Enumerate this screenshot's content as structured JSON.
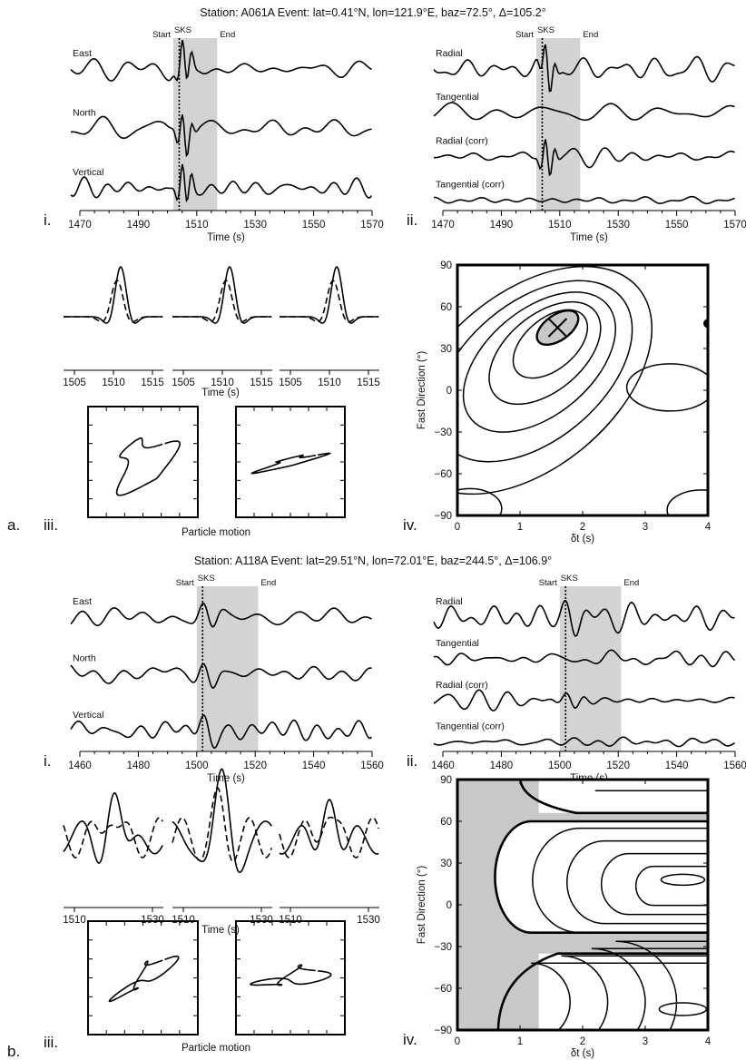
{
  "colors": {
    "trace": "#000000",
    "window": "#d3d3d3",
    "contour_fill": "#c8c8c8",
    "background": "#ffffff"
  },
  "panels": [
    {
      "panel_label": "a.",
      "title": "Station: A061A Event: lat=0.41°N, lon=121.9°E, baz=72.5°, Δ=105.2°",
      "window": {
        "start_label": "Start",
        "phase_label": "SKS",
        "end_label": "End",
        "start": 1502,
        "end": 1517,
        "phase": 1504
      },
      "traces_left": {
        "sub_label": "i.",
        "xlabel": "Time (s)",
        "ticks": [
          "1470",
          "1490",
          "1510",
          "1530",
          "1550",
          "1570"
        ],
        "xlim": [
          1460,
          1570
        ],
        "channels": [
          "East",
          "North",
          "Vertical"
        ]
      },
      "traces_right": {
        "sub_label": "ii.",
        "xlabel": "Time (s)",
        "ticks": [
          "1470",
          "1490",
          "1510",
          "1530",
          "1550",
          "1570"
        ],
        "xlim": [
          1460,
          1570
        ],
        "channels": [
          "Radial",
          "Tangential",
          "Radial (corr)",
          "Tangential (corr)"
        ]
      },
      "waveforms": {
        "sub_label": "iii.",
        "xlabel": "Time (s)",
        "ticks": [
          "1505",
          "1510",
          "1515"
        ]
      },
      "particle_motion": {
        "label": "Particle motion"
      },
      "grid_search": {
        "sub_label": "iv.",
        "ylabel": "Fast Direction (°)",
        "xlabel": "δt (s)",
        "yticks": [
          "90",
          "60",
          "30",
          "0",
          "−30",
          "−60",
          "−90"
        ],
        "xticks": [
          "0",
          "1",
          "2",
          "3",
          "4"
        ],
        "best": {
          "dt": 1.6,
          "phi": 45
        }
      }
    },
    {
      "panel_label": "b.",
      "title": "Station: A118A Event: lat=29.51°N, lon=72.01°E, baz=244.5°, Δ=106.9°",
      "window": {
        "start_label": "Start",
        "phase_label": "SKS",
        "end_label": "End",
        "start": 1500,
        "end": 1521,
        "phase": 1502
      },
      "traces_left": {
        "sub_label": "i.",
        "xlabel": "Time (s)",
        "ticks": [
          "1460",
          "1480",
          "1500",
          "1520",
          "1540",
          "1560"
        ],
        "xlim": [
          1448,
          1560
        ],
        "channels": [
          "East",
          "North",
          "Vertical"
        ]
      },
      "traces_right": {
        "sub_label": "ii.",
        "xlabel": "Time (s)",
        "ticks": [
          "1460",
          "1480",
          "1500",
          "1520",
          "1540",
          "1560"
        ],
        "xlim": [
          1448,
          1560
        ],
        "channels": [
          "Radial",
          "Tangential",
          "Radial (corr)",
          "Tangential (corr)"
        ]
      },
      "waveforms": {
        "sub_label": "iii.",
        "xlabel": "Time (s)",
        "ticks": [
          "1510",
          "1530"
        ]
      },
      "particle_motion": {
        "label": "Particle motion"
      },
      "grid_search": {
        "sub_label": "iv.",
        "ylabel": "Fast Direction (°)",
        "xlabel": "δt (s)",
        "yticks": [
          "90",
          "60",
          "30",
          "0",
          "−30",
          "−60",
          "−90"
        ],
        "xticks": [
          "0",
          "1",
          "2",
          "3",
          "4"
        ]
      }
    }
  ],
  "chart_data": [
    {
      "type": "line",
      "panel": "a.i",
      "x_range": [
        1460,
        1570
      ],
      "series": [
        {
          "name": "East"
        },
        {
          "name": "North"
        },
        {
          "name": "Vertical"
        }
      ]
    },
    {
      "type": "line",
      "panel": "a.ii",
      "x_range": [
        1460,
        1570
      ],
      "series": [
        {
          "name": "Radial"
        },
        {
          "name": "Tangential"
        },
        {
          "name": "Radial (corr)"
        },
        {
          "name": "Tangential (corr)"
        }
      ]
    },
    {
      "type": "heatmap",
      "panel": "a.iv",
      "x_range": [
        0,
        4
      ],
      "y_range": [
        -90,
        90
      ],
      "best_dt": 1.6,
      "best_phi": 45
    },
    {
      "type": "line",
      "panel": "b.i",
      "x_range": [
        1448,
        1560
      ],
      "series": [
        {
          "name": "East"
        },
        {
          "name": "North"
        },
        {
          "name": "Vertical"
        }
      ]
    },
    {
      "type": "line",
      "panel": "b.ii",
      "x_range": [
        1448,
        1560
      ],
      "series": [
        {
          "name": "Radial"
        },
        {
          "name": "Tangential"
        },
        {
          "name": "Radial (corr)"
        },
        {
          "name": "Tangential (corr)"
        }
      ]
    },
    {
      "type": "heatmap",
      "panel": "b.iv",
      "x_range": [
        0,
        4
      ],
      "y_range": [
        -90,
        90
      ]
    }
  ]
}
